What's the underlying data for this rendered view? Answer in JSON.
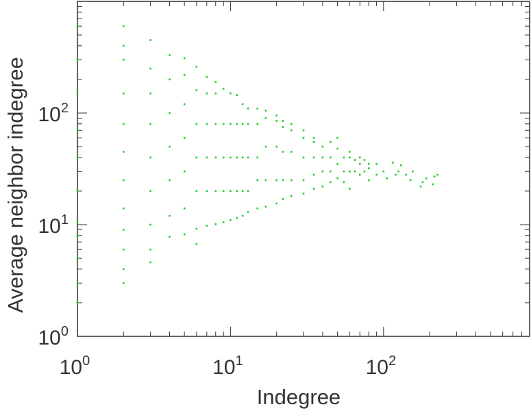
{
  "chart_data": {
    "type": "scatter",
    "title": "",
    "xlabel": "Indegree",
    "ylabel": "Average neighbor indegree",
    "x_scale": "log",
    "y_scale": "log",
    "xlim": [
      1,
      900
    ],
    "ylim": [
      1,
      1000
    ],
    "x_ticks": [
      {
        "value": 1,
        "base": "10",
        "exp": "0"
      },
      {
        "value": 10,
        "base": "10",
        "exp": "1"
      },
      {
        "value": 100,
        "base": "10",
        "exp": "2"
      }
    ],
    "y_ticks": [
      {
        "value": 1,
        "base": "10",
        "exp": "0"
      },
      {
        "value": 10,
        "base": "10",
        "exp": "1"
      },
      {
        "value": 100,
        "base": "10",
        "exp": "2"
      }
    ],
    "grid": false,
    "legend": "none",
    "marker_color": "#22cc22",
    "series": [
      {
        "values": [
          [
            1,
            2
          ],
          [
            1,
            3
          ],
          [
            1,
            5
          ],
          [
            1,
            8
          ],
          [
            1,
            10.5
          ],
          [
            1,
            20
          ],
          [
            1,
            40
          ],
          [
            1,
            70
          ],
          [
            1,
            150
          ],
          [
            1,
            300
          ],
          [
            1,
            600
          ],
          [
            2,
            3
          ],
          [
            2,
            4
          ],
          [
            2,
            6
          ],
          [
            2,
            9
          ],
          [
            2,
            14
          ],
          [
            2,
            25
          ],
          [
            2,
            45
          ],
          [
            2,
            80
          ],
          [
            2,
            150
          ],
          [
            2,
            300
          ],
          [
            2,
            400
          ],
          [
            2,
            600
          ],
          [
            3,
            4.6
          ],
          [
            3,
            6
          ],
          [
            3,
            10
          ],
          [
            3,
            20
          ],
          [
            3,
            40
          ],
          [
            3,
            80
          ],
          [
            3,
            150
          ],
          [
            3,
            250
          ],
          [
            3,
            450
          ],
          [
            4,
            7.8
          ],
          [
            4,
            12
          ],
          [
            4,
            25
          ],
          [
            4,
            50
          ],
          [
            4,
            100
          ],
          [
            4,
            200
          ],
          [
            4,
            330
          ],
          [
            5,
            8.2
          ],
          [
            5,
            14
          ],
          [
            5,
            30
          ],
          [
            5,
            60
          ],
          [
            5,
            120
          ],
          [
            5,
            220
          ],
          [
            5,
            310
          ],
          [
            6,
            6.7
          ],
          [
            6,
            9.2
          ],
          [
            6,
            20
          ],
          [
            6,
            40
          ],
          [
            6,
            80
          ],
          [
            6,
            160
          ],
          [
            6,
            260
          ],
          [
            7,
            9.8
          ],
          [
            7,
            20
          ],
          [
            7,
            40
          ],
          [
            7,
            80
          ],
          [
            7,
            150
          ],
          [
            7,
            210
          ],
          [
            8,
            10.1
          ],
          [
            8,
            20
          ],
          [
            8,
            40
          ],
          [
            8,
            80
          ],
          [
            8,
            150
          ],
          [
            8,
            190
          ],
          [
            9,
            10.5
          ],
          [
            9,
            20
          ],
          [
            9,
            40
          ],
          [
            9,
            80
          ],
          [
            9,
            165
          ],
          [
            10,
            11
          ],
          [
            10,
            20
          ],
          [
            10,
            40
          ],
          [
            10,
            80
          ],
          [
            10,
            150
          ],
          [
            11,
            11.5
          ],
          [
            11,
            20
          ],
          [
            11,
            40
          ],
          [
            11,
            80
          ],
          [
            11,
            145
          ],
          [
            12,
            12
          ],
          [
            12,
            20
          ],
          [
            12,
            40
          ],
          [
            12,
            80
          ],
          [
            12,
            120
          ],
          [
            13,
            13
          ],
          [
            13,
            20
          ],
          [
            13,
            40
          ],
          [
            13,
            80
          ],
          [
            13,
            110
          ],
          [
            15,
            14
          ],
          [
            15,
            25
          ],
          [
            15,
            40
          ],
          [
            15,
            80
          ],
          [
            15,
            110
          ],
          [
            17,
            14.5
          ],
          [
            17,
            25
          ],
          [
            17,
            50
          ],
          [
            17,
            90
          ],
          [
            17,
            105
          ],
          [
            20,
            15.5
          ],
          [
            20,
            25
          ],
          [
            20,
            50
          ],
          [
            20,
            85
          ],
          [
            20,
            95
          ],
          [
            22,
            17
          ],
          [
            22,
            25
          ],
          [
            22,
            45
          ],
          [
            22,
            75
          ],
          [
            22,
            85
          ],
          [
            25,
            18
          ],
          [
            25,
            25
          ],
          [
            25,
            45
          ],
          [
            25,
            70
          ],
          [
            25,
            80
          ],
          [
            30,
            19
          ],
          [
            30,
            25
          ],
          [
            30,
            40
          ],
          [
            30,
            60
          ],
          [
            30,
            70
          ],
          [
            35,
            21
          ],
          [
            35,
            28
          ],
          [
            35,
            40
          ],
          [
            35,
            55
          ],
          [
            35,
            60
          ],
          [
            40,
            22
          ],
          [
            40,
            30
          ],
          [
            40,
            40
          ],
          [
            40,
            50
          ],
          [
            45,
            24
          ],
          [
            45,
            30
          ],
          [
            45,
            40
          ],
          [
            45,
            55
          ],
          [
            50,
            26
          ],
          [
            50,
            35
          ],
          [
            50,
            48
          ],
          [
            50,
            60
          ],
          [
            55,
            24
          ],
          [
            55,
            30
          ],
          [
            55,
            40
          ],
          [
            60,
            21
          ],
          [
            60,
            30
          ],
          [
            60,
            40
          ],
          [
            60,
            45
          ],
          [
            65,
            30
          ],
          [
            65,
            38
          ],
          [
            70,
            28
          ],
          [
            70,
            35
          ],
          [
            70,
            40
          ],
          [
            75,
            30
          ],
          [
            75,
            38
          ],
          [
            80,
            25
          ],
          [
            80,
            32
          ],
          [
            80,
            35
          ],
          [
            90,
            28
          ],
          [
            90,
            35
          ],
          [
            100,
            30
          ],
          [
            105,
            26
          ],
          [
            115,
            36
          ],
          [
            120,
            28
          ],
          [
            125,
            30
          ],
          [
            130,
            34
          ],
          [
            140,
            28
          ],
          [
            150,
            25
          ],
          [
            155,
            30
          ],
          [
            175,
            22
          ],
          [
            180,
            24
          ],
          [
            190,
            26
          ],
          [
            210,
            23
          ],
          [
            215,
            27
          ],
          [
            225,
            28
          ]
        ]
      }
    ]
  }
}
